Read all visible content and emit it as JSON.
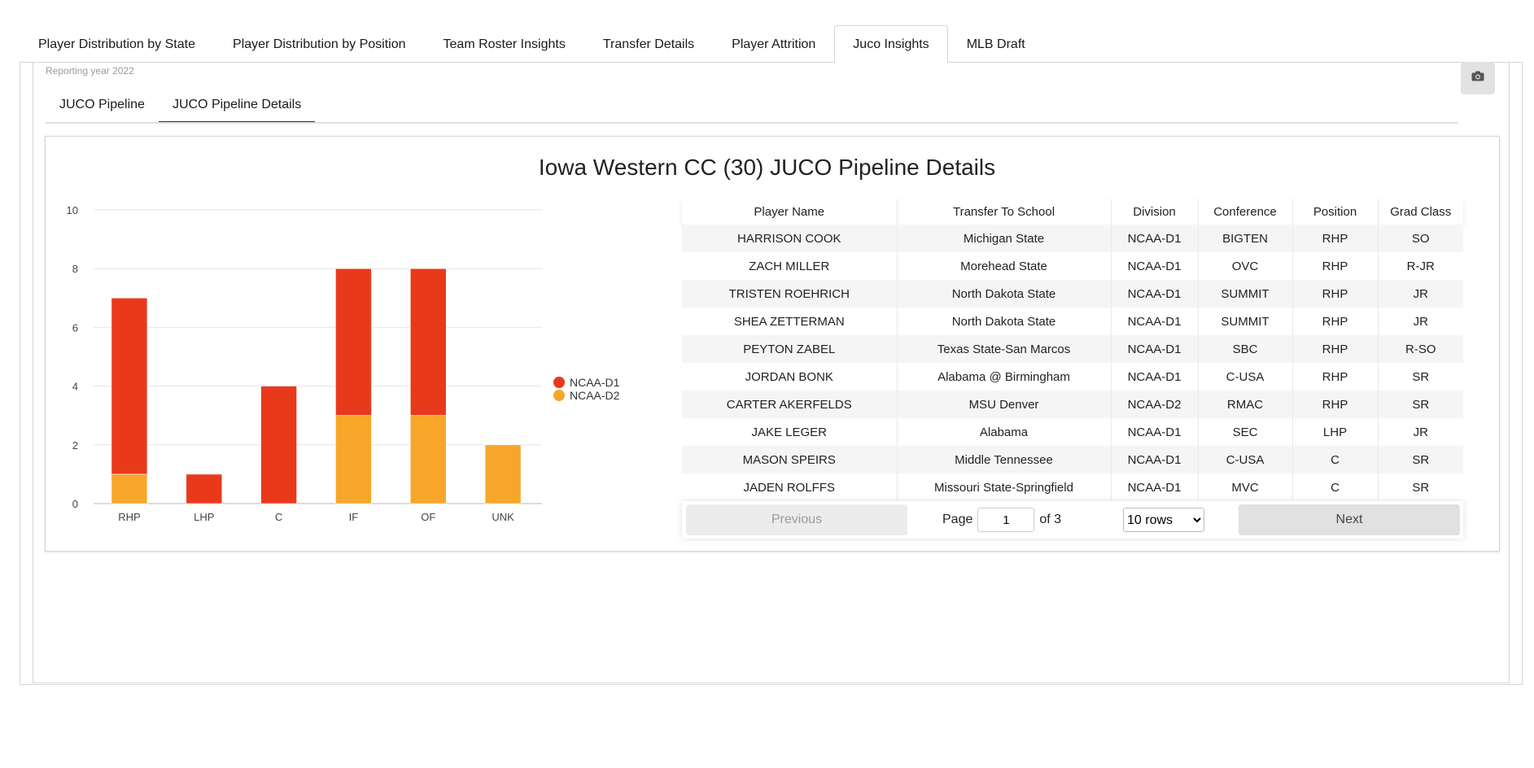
{
  "top_tabs": [
    {
      "label": "Player Distribution by State",
      "active": false
    },
    {
      "label": "Player Distribution by Position",
      "active": false
    },
    {
      "label": "Team Roster Insights",
      "active": false
    },
    {
      "label": "Transfer Details",
      "active": false
    },
    {
      "label": "Player Attrition",
      "active": false
    },
    {
      "label": "Juco Insights",
      "active": true
    },
    {
      "label": "MLB Draft",
      "active": false
    }
  ],
  "reporting_year": "Reporting year 2022",
  "camera_icon": "camera-icon",
  "sub_tabs": [
    {
      "label": "JUCO Pipeline",
      "active": false
    },
    {
      "label": "JUCO Pipeline Details",
      "active": true
    }
  ],
  "card_title": "Iowa Western CC (30) JUCO Pipeline Details",
  "colors": {
    "ncaa_d1": "#e9391b",
    "ncaa_d2": "#f8a62a"
  },
  "chart_data": {
    "type": "bar",
    "stacked": true,
    "categories": [
      "RHP",
      "LHP",
      "C",
      "IF",
      "OF",
      "UNK"
    ],
    "series": [
      {
        "name": "NCAA-D1",
        "values": [
          6,
          1,
          4,
          5,
          5,
          0
        ],
        "color": "#e9391b"
      },
      {
        "name": "NCAA-D2",
        "values": [
          1,
          0,
          0,
          3,
          3,
          2
        ],
        "color": "#f8a62a"
      }
    ],
    "ylim": [
      0,
      10
    ],
    "yticks": [
      0,
      2,
      4,
      6,
      8,
      10
    ],
    "grid": true,
    "legend": "right"
  },
  "table": {
    "columns": [
      "Player Name",
      "Transfer To School",
      "Division",
      "Conference",
      "Position",
      "Grad Class"
    ],
    "rows": [
      [
        "HARRISON COOK",
        "Michigan State",
        "NCAA-D1",
        "BIGTEN",
        "RHP",
        "SO"
      ],
      [
        "ZACH MILLER",
        "Morehead State",
        "NCAA-D1",
        "OVC",
        "RHP",
        "R-JR"
      ],
      [
        "TRISTEN ROEHRICH",
        "North Dakota State",
        "NCAA-D1",
        "SUMMIT",
        "RHP",
        "JR"
      ],
      [
        "SHEA ZETTERMAN",
        "North Dakota State",
        "NCAA-D1",
        "SUMMIT",
        "RHP",
        "JR"
      ],
      [
        "PEYTON ZABEL",
        "Texas State-San Marcos",
        "NCAA-D1",
        "SBC",
        "RHP",
        "R-SO"
      ],
      [
        "JORDAN BONK",
        "Alabama @ Birmingham",
        "NCAA-D1",
        "C-USA",
        "RHP",
        "SR"
      ],
      [
        "CARTER AKERFELDS",
        "MSU Denver",
        "NCAA-D2",
        "RMAC",
        "RHP",
        "SR"
      ],
      [
        "JAKE LEGER",
        "Alabama",
        "NCAA-D1",
        "SEC",
        "LHP",
        "JR"
      ],
      [
        "MASON SPEIRS",
        "Middle Tennessee",
        "NCAA-D1",
        "C-USA",
        "C",
        "SR"
      ],
      [
        "JADEN ROLFFS",
        "Missouri State-Springfield",
        "NCAA-D1",
        "MVC",
        "C",
        "SR"
      ]
    ]
  },
  "pagination": {
    "previous_label": "Previous",
    "next_label": "Next",
    "page_label": "Page",
    "current_page": "1",
    "of_label": "of 3",
    "rows_options": [
      "10 rows"
    ],
    "rows_selected": "10 rows"
  }
}
